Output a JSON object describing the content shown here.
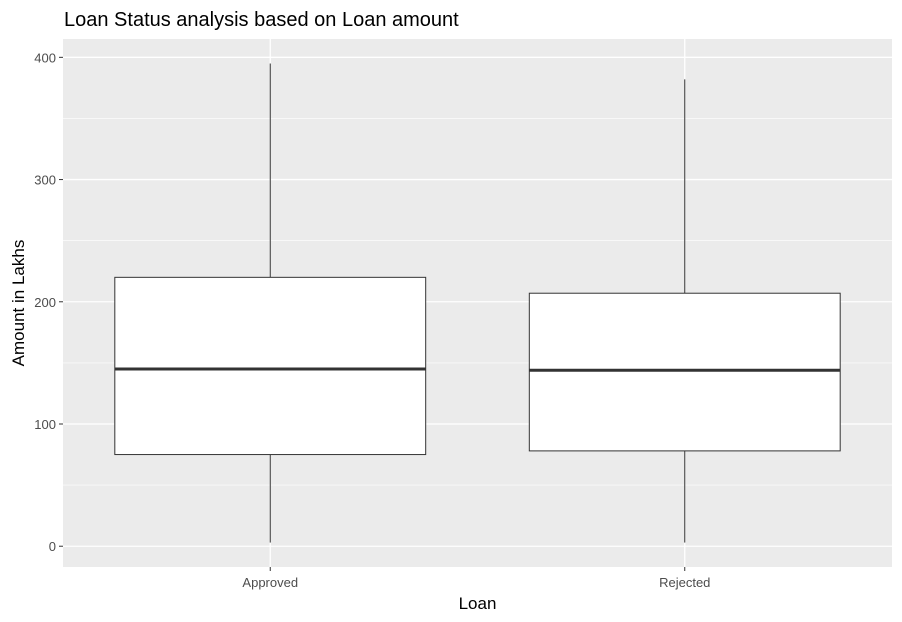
{
  "chart_data": {
    "type": "boxplot",
    "title": "Loan Status analysis based on Loan amount",
    "xlabel": "Loan",
    "ylabel": "Amount in Lakhs",
    "categories": [
      "Approved",
      "Rejected"
    ],
    "boxes": [
      {
        "category": "Approved",
        "min": 3,
        "q1": 75,
        "median": 145,
        "q3": 220,
        "max": 395
      },
      {
        "category": "Rejected",
        "min": 3,
        "q1": 78,
        "median": 144,
        "q3": 207,
        "max": 382
      }
    ],
    "ylim": [
      -17,
      415
    ],
    "yticks": [
      0,
      100,
      200,
      300,
      400
    ],
    "ytick_labels": [
      "0",
      "100",
      "200",
      "300",
      "400"
    ],
    "grid": true,
    "colors": {
      "panel_background": "#ebebeb",
      "grid_line": "#ffffff",
      "box_fill": "#ffffff",
      "box_stroke": "#333333",
      "tick_label": "#4d4d4d",
      "axis_title": "#000000"
    }
  }
}
